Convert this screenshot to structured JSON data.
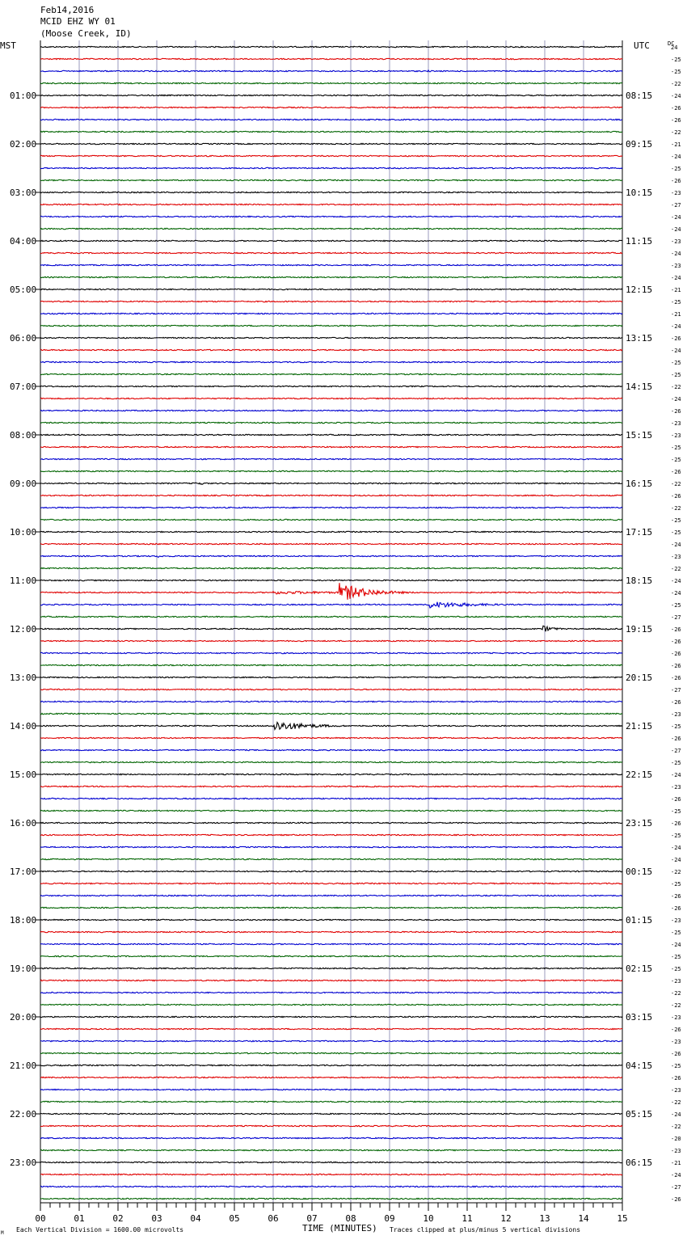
{
  "header": {
    "date": "Feb14,2016",
    "station": "MCID EHZ WY 01",
    "location": "(Moose Creek, ID)"
  },
  "left_zone": "MST",
  "right_zone": "UTC",
  "dc_label": "DC",
  "footer": {
    "scale_text": "Each Vertical Division = 1600.00 microvolts",
    "axis_title": "TIME (MINUTES)",
    "clip_text": "Traces clipped at plus/minus 5 vertical divisions",
    "mark": "M"
  },
  "colors": {
    "trace": [
      "#000000",
      "#e00000",
      "#0000d0",
      "#006400"
    ],
    "grid": "#7070a0"
  },
  "chart_data": {
    "type": "line",
    "xlabel": "TIME (MINUTES)",
    "xlim": [
      0,
      15
    ],
    "x_ticks": [
      "00",
      "01",
      "02",
      "03",
      "04",
      "05",
      "06",
      "07",
      "08",
      "09",
      "10",
      "11",
      "12",
      "13",
      "14",
      "15"
    ],
    "left_hour_labels": [
      "01:00",
      "02:00",
      "03:00",
      "04:00",
      "05:00",
      "06:00",
      "07:00",
      "08:00",
      "09:00",
      "10:00",
      "11:00",
      "12:00",
      "13:00",
      "14:00",
      "15:00",
      "16:00",
      "17:00",
      "18:00",
      "19:00",
      "20:00",
      "21:00",
      "22:00",
      "23:00"
    ],
    "right_hour_labels": [
      "08:15",
      "09:15",
      "10:15",
      "11:15",
      "12:15",
      "13:15",
      "14:15",
      "15:15",
      "16:15",
      "17:15",
      "18:15",
      "19:15",
      "20:15",
      "21:15",
      "22:15",
      "23:15",
      "00:15",
      "01:15",
      "02:15",
      "03:15",
      "04:15",
      "05:15",
      "06:15"
    ],
    "dc_offsets": [
      "24",
      "-25",
      "-25",
      "-22",
      "-24",
      "-26",
      "-26",
      "-22",
      "-21",
      "-24",
      "-25",
      "-26",
      "-23",
      "-27",
      "-24",
      "-24",
      "-23",
      "-24",
      "-23",
      "-24",
      "-21",
      "-25",
      "-21",
      "-24",
      "-26",
      "-24",
      "-25",
      "-25",
      "-22",
      "-24",
      "-26",
      "-23",
      "-23",
      "-25",
      "-25",
      "-26",
      "-22",
      "-26",
      "-22",
      "-25",
      "-25",
      "-24",
      "-23",
      "-22",
      "-24",
      "-24",
      "-25",
      "-27",
      "-26",
      "-26",
      "-26",
      "-26",
      "-26",
      "-27",
      "-26",
      "-23",
      "-25",
      "-26",
      "-27",
      "-25",
      "-24",
      "-23",
      "-26",
      "-25",
      "-26",
      "-25",
      "-24",
      "-24",
      "-22",
      "-25",
      "-26",
      "-26",
      "-23",
      "-25",
      "-24",
      "-25",
      "-25",
      "-23",
      "-22",
      "-22",
      "-23",
      "-26",
      "-23",
      "-26",
      "-25",
      "-26",
      "-23",
      "-22",
      "-24",
      "-22",
      "-20",
      "-23",
      "-21",
      "-24",
      "-27",
      "-26"
    ],
    "events": [
      {
        "trace": 2,
        "minute": 10.0,
        "duration": 0.6,
        "amp": 1.3
      },
      {
        "trace": 3,
        "minute": 7.8,
        "duration": 1.0,
        "amp": 0.6
      },
      {
        "trace": 3,
        "minute": 10.6,
        "duration": 0.3,
        "amp": 2.0
      },
      {
        "trace": 10,
        "minute": 3.0,
        "duration": 0.3,
        "amp": 0.8
      },
      {
        "trace": 13,
        "minute": 9.3,
        "duration": 0.5,
        "amp": 0.5
      },
      {
        "trace": 22,
        "minute": 2.2,
        "duration": 0.8,
        "amp": 0.8
      },
      {
        "trace": 32,
        "minute": 0.8,
        "duration": 0.5,
        "amp": 0.8
      },
      {
        "trace": 36,
        "minute": 0.0,
        "duration": 0.3,
        "amp": 0.8
      },
      {
        "trace": 36,
        "minute": 4.0,
        "duration": 0.9,
        "amp": 2.5
      },
      {
        "trace": 42,
        "minute": 3.0,
        "duration": 0.6,
        "amp": 2.0
      },
      {
        "trace": 45,
        "minute": 6.0,
        "duration": 9.0,
        "amp": 2.0
      },
      {
        "trace": 45,
        "minute": 7.7,
        "duration": 2.3,
        "amp": 12.0
      },
      {
        "trace": 46,
        "minute": 10.0,
        "duration": 3.8,
        "amp": 4.5
      },
      {
        "trace": 48,
        "minute": 12.9,
        "duration": 1.0,
        "amp": 5.0
      },
      {
        "trace": 56,
        "minute": 6.0,
        "duration": 2.8,
        "amp": 7.0
      },
      {
        "trace": 57,
        "minute": 0.8,
        "duration": 0.5,
        "amp": 0.8
      },
      {
        "trace": 60,
        "minute": 0.9,
        "duration": 0.3,
        "amp": 0.6
      },
      {
        "trace": 78,
        "minute": 8.6,
        "duration": 0.5,
        "amp": 0.8
      },
      {
        "trace": 81,
        "minute": 7.4,
        "duration": 0.4,
        "amp": 1.2
      },
      {
        "trace": 91,
        "minute": 8.6,
        "duration": 0.5,
        "amp": 0.8
      },
      {
        "trace": 94,
        "minute": 1.1,
        "duration": 0.6,
        "amp": 0.8
      }
    ]
  }
}
